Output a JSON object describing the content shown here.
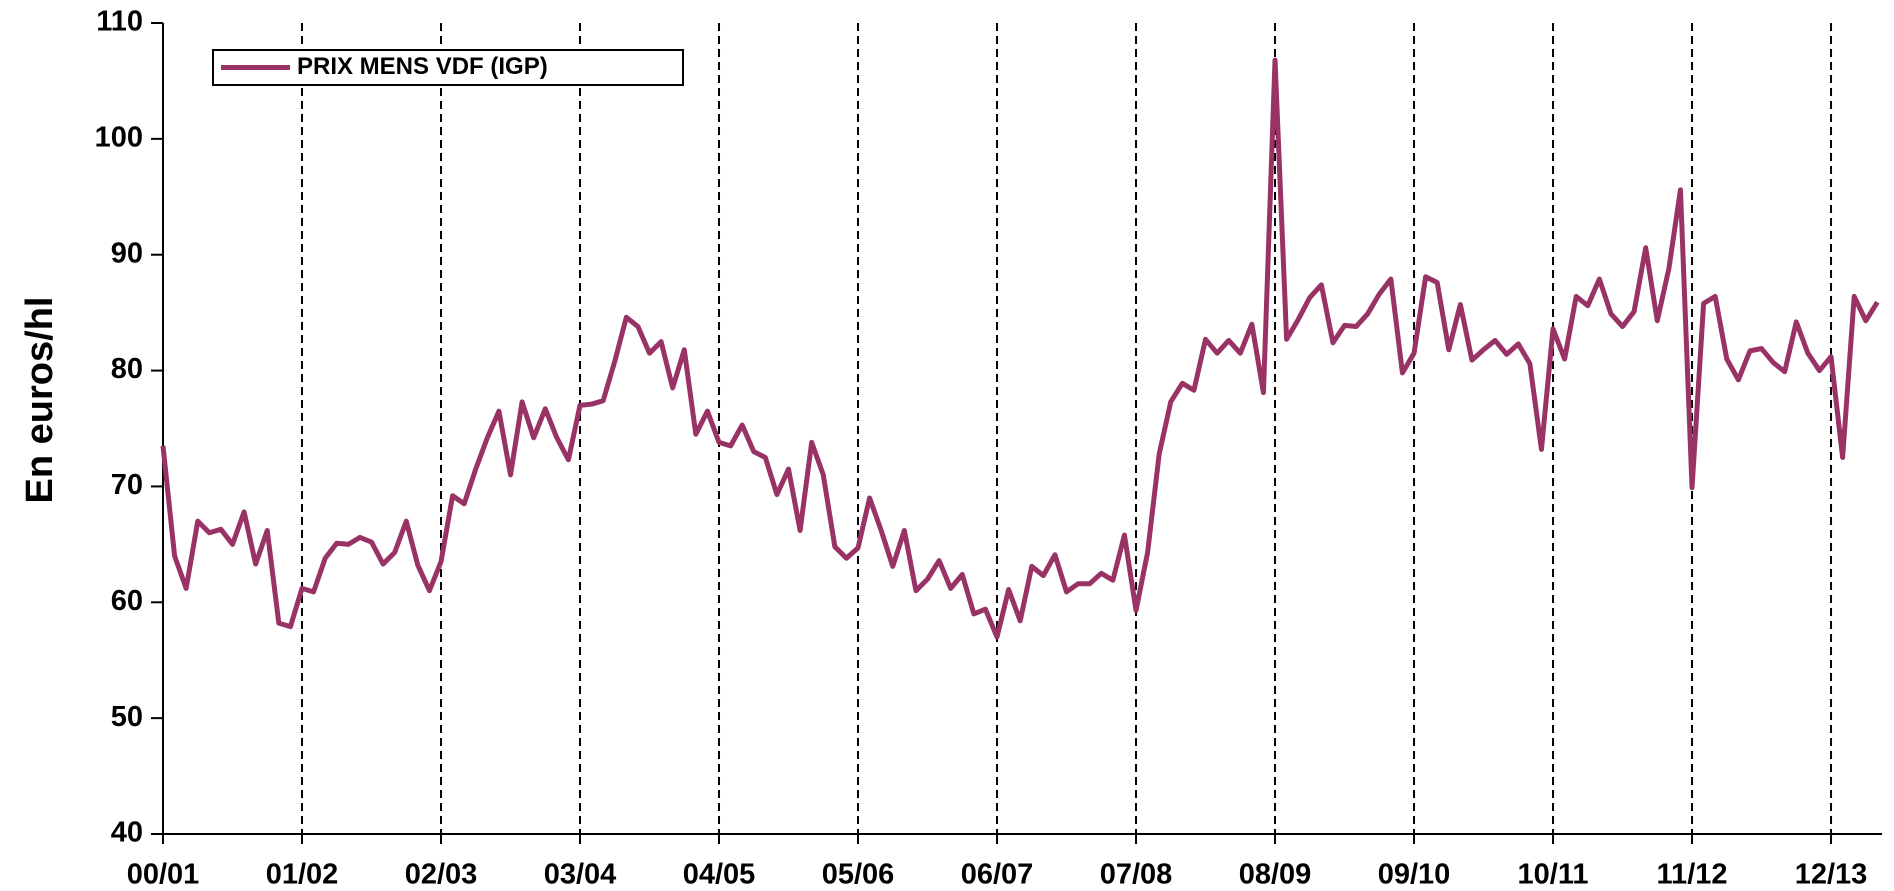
{
  "chart_data": {
    "type": "line",
    "y_label": "En euros/hl",
    "x": [
      0,
      1,
      2,
      3,
      4,
      5,
      6,
      7,
      8,
      9,
      10,
      11,
      12,
      13,
      14,
      15,
      16,
      17,
      18,
      19,
      20,
      21,
      22,
      23,
      24,
      25,
      26,
      27,
      28,
      29,
      30,
      31,
      32,
      33,
      34,
      35,
      36,
      37,
      38,
      39,
      40,
      41,
      42,
      43,
      44,
      45,
      46,
      47,
      48,
      49,
      50,
      51,
      52,
      53,
      54,
      55,
      56,
      57,
      58,
      59,
      60,
      61,
      62,
      63,
      64,
      65,
      66,
      67,
      68,
      69,
      70,
      71,
      72,
      73,
      74,
      75,
      76,
      77,
      78,
      79,
      80,
      81,
      82,
      83,
      84,
      85,
      86,
      87,
      88,
      89,
      90,
      91,
      92,
      93,
      94,
      95,
      96,
      97,
      98,
      99,
      100,
      101,
      102,
      103,
      104,
      105,
      106,
      107,
      108,
      109,
      110,
      111,
      112,
      113,
      114,
      115,
      116,
      117,
      118,
      119,
      120,
      121,
      122,
      123,
      124,
      125,
      126,
      127,
      128,
      129,
      130,
      131,
      132,
      133,
      134,
      135,
      136,
      137,
      138,
      139,
      140,
      141,
      142,
      143,
      144,
      145,
      146,
      147,
      148
    ],
    "series": [
      {
        "name": "PRIX MENS VDF (IGP)",
        "color": "#993366",
        "values": [
          73.5,
          64,
          61.2,
          67,
          66,
          66.3,
          65,
          67.8,
          63.3,
          66.2,
          58.2,
          57.9,
          61.2,
          60.9,
          63.8,
          65.1,
          65,
          65.6,
          65.2,
          63.3,
          64.3,
          67,
          63.2,
          61,
          63.5,
          69.2,
          68.5,
          71.5,
          74.2,
          76.5,
          71,
          77.3,
          74.2,
          76.7,
          74.2,
          72.3,
          77,
          77.1,
          77.4,
          80.8,
          84.6,
          83.8,
          81.5,
          82.5,
          78.5,
          81.8,
          74.5,
          76.5,
          73.8,
          73.5,
          75.3,
          73,
          72.5,
          69.3,
          71.5,
          66.2,
          73.8,
          71,
          64.8,
          63.8,
          64.7,
          69,
          66.2,
          63.1,
          66.2,
          61,
          62,
          63.6,
          61.2,
          62.4,
          59,
          59.4,
          57,
          61.1,
          58.4,
          63.1,
          62.3,
          64.1,
          60.9,
          61.6,
          61.6,
          62.5,
          61.9,
          65.8,
          59.3,
          64.3,
          72.8,
          77.3,
          78.9,
          78.3,
          82.7,
          81.5,
          82.6,
          81.5,
          84,
          78.1,
          106.8,
          82.7,
          84.4,
          86.3,
          87.4,
          82.4,
          83.9,
          83.8,
          84.9,
          86.6,
          87.9,
          79.8,
          81.5,
          88.1,
          87.6,
          81.8,
          85.7,
          80.9,
          81.8,
          82.6,
          81.4,
          82.3,
          80.6,
          73.2,
          83.6,
          81,
          86.4,
          85.6,
          87.9,
          84.9,
          83.8,
          85.1,
          90.6,
          84.3,
          88.8,
          95.6,
          69.9,
          85.8,
          86.4,
          81,
          79.2,
          81.7,
          81.9,
          80.7,
          79.9,
          84.2,
          81.5,
          80,
          81.2,
          72.5,
          86.4,
          84.3,
          85.9
        ]
      }
    ],
    "xlim": [
      0,
      148.4
    ],
    "xticks": [
      {
        "value": 0,
        "label": "00/01"
      },
      {
        "value": 12,
        "label": "01/02"
      },
      {
        "value": 24,
        "label": "02/03"
      },
      {
        "value": 36,
        "label": "03/04"
      },
      {
        "value": 48,
        "label": "04/05"
      },
      {
        "value": 60,
        "label": "05/06"
      },
      {
        "value": 72,
        "label": "06/07"
      },
      {
        "value": 84,
        "label": "07/08"
      },
      {
        "value": 96,
        "label": "08/09"
      },
      {
        "value": 108,
        "label": "09/10"
      },
      {
        "value": 120,
        "label": "10/11"
      },
      {
        "value": 132,
        "label": "11/12"
      },
      {
        "value": 144,
        "label": "12/13"
      }
    ],
    "ylim": [
      40,
      110
    ],
    "yticks": [
      40,
      50,
      60,
      70,
      80,
      90,
      100,
      110
    ],
    "legend": "upper left"
  }
}
